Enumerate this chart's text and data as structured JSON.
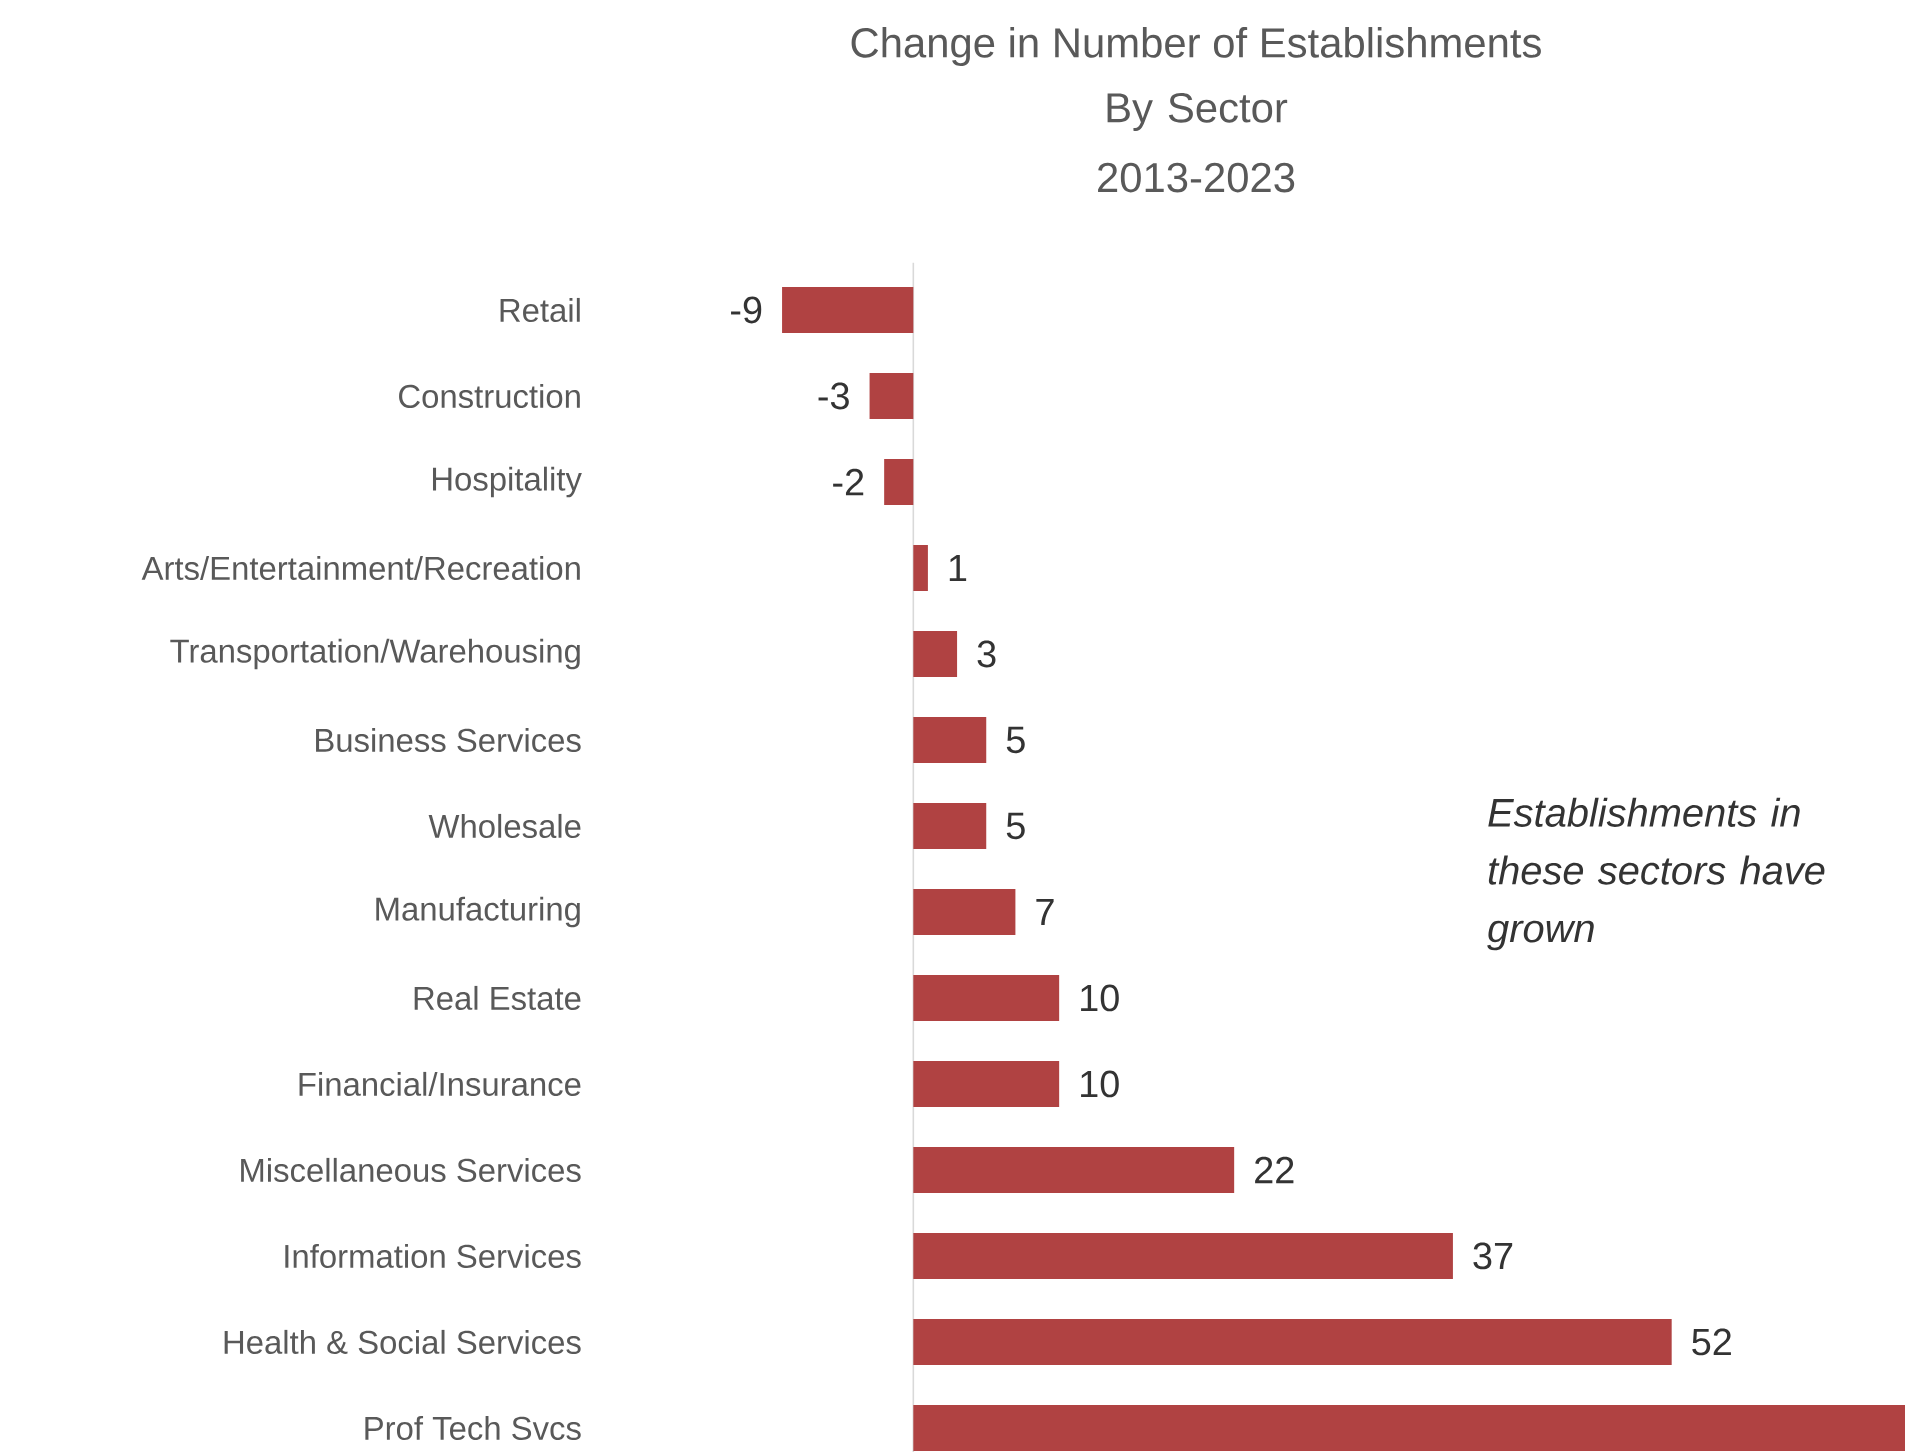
{
  "chart_data": {
    "type": "bar",
    "orientation": "horizontal",
    "title": "Change in Number of Establishments",
    "subtitle": "By Sector 2013-2023",
    "categories": [
      "Retail",
      "Construction",
      "Hospitality",
      "Arts/Entertainment/Recreation",
      "Transportation/Warehousing",
      "Business Services",
      "Wholesale",
      "Manufacturing",
      "Real Estate",
      "Financial/Insurance",
      "Miscellaneous Services",
      "Information Services",
      "Health & Social Services",
      "Prof Tech Svcs"
    ],
    "values": [
      -9,
      -3,
      -2,
      1,
      3,
      5,
      5,
      7,
      10,
      10,
      22,
      37,
      52,
      68
    ],
    "value_labels": [
      "-9",
      "-3",
      "-2",
      "1",
      "3",
      "5",
      "5",
      "7",
      "10",
      "10",
      "22",
      "37",
      "52",
      null
    ],
    "color": "#b04242",
    "tick_labels": "y",
    "annotations": [
      "Establishments in these sectors have grown"
    ]
  }
}
